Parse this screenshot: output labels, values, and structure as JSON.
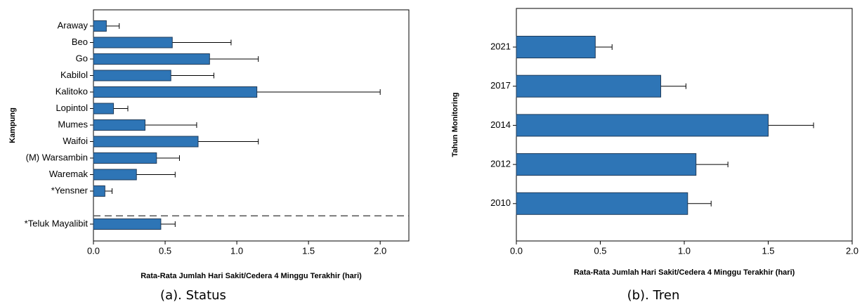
{
  "chart_data": [
    {
      "type": "bar",
      "orientation": "horizontal",
      "y_label": "Kampung",
      "x_label": "Rata-Rata Jumlah Hari Sakit/Cedera 4 Minggu Terakhir (hari)",
      "caption": "(a). Status",
      "categories": [
        "Araway",
        "Beo",
        "Go",
        "Kabilol",
        "Kalitoko",
        "Lopintol",
        "Mumes",
        "Waifoi",
        "(M) Warsambin",
        "Waremak",
        "*Yensner",
        "*Teluk Mayalibit"
      ],
      "values": [
        0.09,
        0.55,
        0.81,
        0.54,
        1.14,
        0.14,
        0.36,
        0.73,
        0.44,
        0.3,
        0.08,
        0.47
      ],
      "errors": [
        0.09,
        0.41,
        0.34,
        0.3,
        0.86,
        0.1,
        0.36,
        0.42,
        0.16,
        0.27,
        0.05,
        0.1
      ],
      "color": "#2e75b6",
      "xlim": [
        0,
        2.2
      ],
      "xticks": [
        {
          "value": 0,
          "label": "0.0"
        },
        {
          "value": 0.5,
          "label": "0.5"
        },
        {
          "value": 1,
          "label": "1.0"
        },
        {
          "value": 1.5,
          "label": "1.5"
        },
        {
          "value": 2,
          "label": "2.0"
        }
      ]
    },
    {
      "type": "bar",
      "orientation": "horizontal",
      "y_label": "Tahun Monitoring",
      "x_label": "Rata-Rata Jumlah Hari Sakit/Cedera 4 Minggu Terakhir (hari)",
      "caption": "(b). Tren",
      "categories": [
        "2021",
        "2017",
        "2014",
        "2012",
        "2010"
      ],
      "values": [
        0.47,
        0.86,
        1.5,
        1.07,
        1.02
      ],
      "errors": [
        0.1,
        0.15,
        0.27,
        0.19,
        0.14
      ],
      "color": "#2e75b6",
      "xlim": [
        0,
        2.0
      ],
      "xticks": [
        {
          "value": 0,
          "label": "0.0"
        },
        {
          "value": 0.5,
          "label": "0.5"
        },
        {
          "value": 1,
          "label": "1.0"
        },
        {
          "value": 1.5,
          "label": "1.5"
        },
        {
          "value": 2,
          "label": "2.0"
        }
      ]
    }
  ]
}
